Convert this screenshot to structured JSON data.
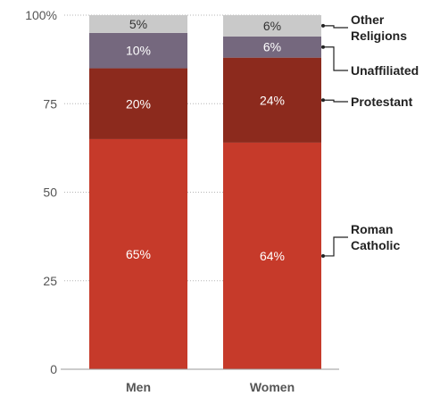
{
  "chart_data": {
    "type": "bar",
    "stacked": true,
    "categories": [
      "Men",
      "Women"
    ],
    "series": [
      {
        "name": "Roman Catholic",
        "values": [
          65,
          64
        ],
        "labels": [
          "65%",
          "64%"
        ],
        "color": "#c63a2a",
        "text_color": "#ffffff"
      },
      {
        "name": "Protestant",
        "values": [
          20,
          24
        ],
        "labels": [
          "20%",
          "24%"
        ],
        "color": "#8c2a1d",
        "text_color": "#ffffff"
      },
      {
        "name": "Unaffiliated",
        "values": [
          10,
          6
        ],
        "labels": [
          "10%",
          "6%"
        ],
        "color": "#75687e",
        "text_color": "#ffffff"
      },
      {
        "name": "Other Religions",
        "values": [
          5,
          6
        ],
        "labels": [
          "5%",
          "6%"
        ],
        "color": "#c9c9c9",
        "text_color": "#333333"
      }
    ],
    "y_ticks": [
      {
        "value": 0,
        "label": "0"
      },
      {
        "value": 25,
        "label": "25"
      },
      {
        "value": 50,
        "label": "50"
      },
      {
        "value": 75,
        "label": "75"
      },
      {
        "value": 100,
        "label": "100%"
      }
    ],
    "ylim": [
      0,
      100
    ],
    "grid": "dotted",
    "legend": "right",
    "legend_labels": [
      {
        "series": "Other Religions",
        "lines": [
          "Other",
          "Religions"
        ]
      },
      {
        "series": "Unaffiliated",
        "lines": [
          "Unaffiliated"
        ]
      },
      {
        "series": "Protestant",
        "lines": [
          "Protestant"
        ]
      },
      {
        "series": "Roman Catholic",
        "lines": [
          "Roman",
          "Catholic"
        ]
      }
    ]
  }
}
